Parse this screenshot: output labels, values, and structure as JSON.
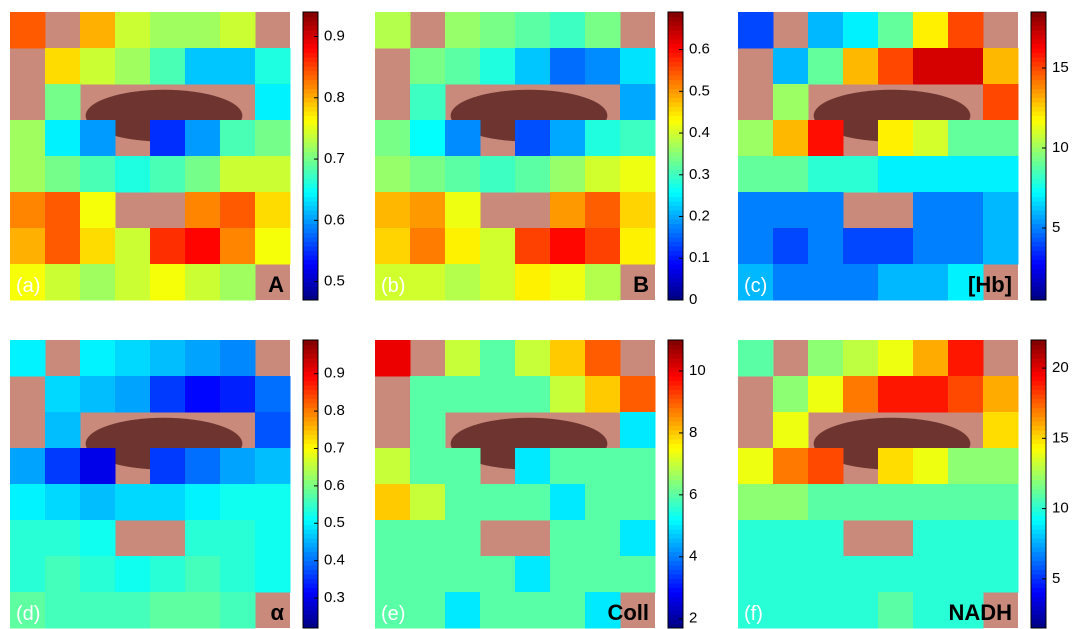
{
  "chart_data": [
    {
      "type": "heatmap",
      "panel_label": "(a)",
      "title": "A",
      "ylim": [
        0.47,
        0.94
      ],
      "yticks": [
        0.5,
        0.6,
        0.7,
        0.8,
        0.9
      ],
      "values": [
        [
          0.84,
          null,
          0.8,
          0.74,
          0.72,
          0.72,
          0.74,
          null
        ],
        [
          null,
          0.78,
          0.74,
          0.72,
          0.68,
          0.62,
          0.62,
          0.66
        ],
        [
          null,
          0.7,
          null,
          null,
          null,
          null,
          null,
          0.64
        ],
        [
          0.72,
          0.64,
          0.6,
          null,
          0.55,
          0.6,
          0.68,
          0.7
        ],
        [
          0.72,
          0.7,
          0.68,
          0.66,
          0.68,
          0.7,
          0.74,
          0.74
        ],
        [
          0.82,
          0.84,
          0.76,
          null,
          null,
          0.82,
          0.84,
          0.78
        ],
        [
          0.8,
          0.84,
          0.78,
          0.74,
          0.86,
          0.88,
          0.82,
          0.76
        ],
        [
          0.76,
          0.74,
          0.72,
          0.74,
          0.76,
          0.74,
          0.72,
          null
        ]
      ]
    },
    {
      "type": "heatmap",
      "panel_label": "(b)",
      "title": "B",
      "ylim": [
        0,
        0.69
      ],
      "yticks": [
        0,
        0.1,
        0.2,
        0.3,
        0.4,
        0.5,
        0.6
      ],
      "values": [
        [
          0.38,
          null,
          0.36,
          0.34,
          0.32,
          0.3,
          0.34,
          null
        ],
        [
          null,
          0.34,
          0.32,
          0.28,
          0.22,
          0.16,
          0.18,
          0.24
        ],
        [
          null,
          0.3,
          null,
          null,
          null,
          null,
          null,
          0.2
        ],
        [
          0.34,
          0.26,
          0.18,
          null,
          0.14,
          0.2,
          0.28,
          0.3
        ],
        [
          0.36,
          0.34,
          0.32,
          0.3,
          0.32,
          0.36,
          0.4,
          0.42
        ],
        [
          0.48,
          0.5,
          0.42,
          null,
          null,
          0.5,
          0.54,
          0.46
        ],
        [
          0.46,
          0.52,
          0.44,
          0.4,
          0.56,
          0.6,
          0.56,
          0.44
        ],
        [
          0.4,
          0.4,
          0.38,
          0.4,
          0.44,
          0.42,
          0.38,
          null
        ]
      ]
    },
    {
      "type": "heatmap",
      "panel_label": "(c)",
      "title": "[Hb]",
      "ylim": [
        0.5,
        18.5
      ],
      "yticks": [
        5,
        10,
        15
      ],
      "values": [
        [
          4,
          null,
          6,
          7,
          9,
          12,
          15,
          null
        ],
        [
          null,
          6,
          9,
          13,
          15,
          17,
          17,
          13
        ],
        [
          null,
          10,
          null,
          null,
          null,
          null,
          null,
          15
        ],
        [
          10,
          13,
          16,
          null,
          12,
          11,
          9,
          9
        ],
        [
          9,
          9,
          8,
          8,
          7,
          7,
          7,
          7
        ],
        [
          5,
          5,
          5,
          null,
          null,
          5,
          5,
          6
        ],
        [
          5,
          4,
          5,
          4,
          4,
          5,
          5,
          6
        ],
        [
          6,
          5,
          5,
          5,
          6,
          6,
          7,
          null
        ]
      ]
    },
    {
      "type": "heatmap",
      "panel_label": "(d)",
      "title": "α",
      "ylim": [
        0.22,
        0.99
      ],
      "yticks": [
        0.3,
        0.4,
        0.5,
        0.6,
        0.7,
        0.8,
        0.9
      ],
      "values": [
        [
          0.5,
          null,
          0.5,
          0.48,
          0.46,
          0.44,
          0.42,
          null
        ],
        [
          null,
          0.48,
          0.46,
          0.44,
          0.36,
          0.32,
          0.34,
          0.4
        ],
        [
          null,
          0.46,
          null,
          null,
          null,
          null,
          null,
          0.38
        ],
        [
          0.44,
          0.36,
          0.3,
          null,
          0.36,
          0.4,
          0.44,
          0.46
        ],
        [
          0.5,
          0.48,
          0.46,
          0.48,
          0.48,
          0.5,
          0.52,
          0.52
        ],
        [
          0.54,
          0.54,
          0.52,
          null,
          null,
          0.54,
          0.54,
          0.52
        ],
        [
          0.54,
          0.56,
          0.54,
          0.52,
          0.54,
          0.56,
          0.54,
          0.52
        ],
        [
          0.58,
          0.56,
          0.56,
          0.56,
          0.58,
          0.58,
          0.56,
          null
        ]
      ]
    },
    {
      "type": "heatmap",
      "panel_label": "(e)",
      "title": "Coll",
      "ylim": [
        1.7,
        11
      ],
      "yticks": [
        2,
        4,
        6,
        8,
        10
      ],
      "values": [
        [
          10,
          null,
          7,
          6,
          7,
          8,
          9,
          null
        ],
        [
          null,
          6,
          6,
          6,
          6,
          7,
          8,
          9
        ],
        [
          null,
          6,
          null,
          null,
          null,
          null,
          null,
          5
        ],
        [
          7,
          6,
          6,
          null,
          5,
          6,
          6,
          6
        ],
        [
          8,
          7,
          6,
          6,
          6,
          5,
          6,
          6
        ],
        [
          6,
          6,
          6,
          null,
          null,
          6,
          6,
          5
        ],
        [
          6,
          6,
          6,
          6,
          5,
          6,
          6,
          6
        ],
        [
          6,
          6,
          5,
          6,
          6,
          6,
          5,
          null
        ]
      ]
    },
    {
      "type": "heatmap",
      "panel_label": "(f)",
      "title": "NADH",
      "ylim": [
        1.5,
        22
      ],
      "yticks": [
        5,
        10,
        15,
        20
      ],
      "values": [
        [
          11,
          null,
          12,
          13,
          14,
          16,
          19,
          null
        ],
        [
          null,
          12,
          14,
          17,
          19,
          19,
          18,
          16
        ],
        [
          null,
          14,
          null,
          null,
          null,
          null,
          null,
          15
        ],
        [
          14,
          17,
          18,
          null,
          15,
          14,
          12,
          12
        ],
        [
          12,
          12,
          11,
          11,
          11,
          11,
          11,
          11
        ],
        [
          10,
          10,
          10,
          null,
          null,
          10,
          10,
          10
        ],
        [
          10,
          10,
          10,
          10,
          10,
          10,
          10,
          10
        ],
        [
          10,
          10,
          10,
          10,
          11,
          10,
          10,
          null
        ]
      ]
    }
  ]
}
